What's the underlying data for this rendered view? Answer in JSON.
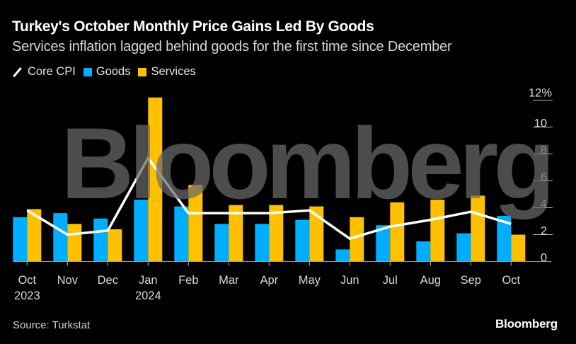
{
  "header": {
    "title": "Turkey's October Monthly Price Gains Led By Goods",
    "subtitle": "Services inflation lagged behind goods for the first time since December"
  },
  "legend": [
    {
      "name": "Core CPI",
      "kind": "line",
      "color": "#ffffff"
    },
    {
      "name": "Goods",
      "kind": "bar",
      "color": "#00adff"
    },
    {
      "name": "Services",
      "kind": "bar",
      "color": "#ffc000"
    }
  ],
  "watermark": "Bloomberg",
  "footer": {
    "source": "Source: Turkstat",
    "brand": "Bloomberg"
  },
  "chart_data": {
    "type": "bar",
    "title": "Turkey's October Monthly Price Gains Led By Goods",
    "subtitle": "Services inflation lagged behind goods for the first time since December",
    "xlabel": "",
    "ylabel": "",
    "y_unit": "%",
    "ylim": [
      0,
      12
    ],
    "yticks": [
      0,
      2,
      4,
      6,
      8,
      10,
      12
    ],
    "ytick_labels": [
      "0",
      "2",
      "4",
      "6",
      "8",
      "10",
      "12%"
    ],
    "y_axis_side": "right",
    "grid": false,
    "legend_position": "top-left",
    "categories": [
      "Oct",
      "Nov",
      "Dec",
      "Jan",
      "Feb",
      "Mar",
      "Apr",
      "May",
      "Jun",
      "Jul",
      "Aug",
      "Sep",
      "Oct"
    ],
    "category_sublabels": [
      "2023",
      "",
      "",
      "2024",
      "",
      "",
      "",
      "",
      "",
      "",
      "",
      "",
      ""
    ],
    "series": [
      {
        "name": "Goods",
        "type": "bar",
        "color": "#00adff",
        "values": [
          3.3,
          3.6,
          3.2,
          4.6,
          4.1,
          2.8,
          2.8,
          3.1,
          0.9,
          2.7,
          1.5,
          2.1,
          3.4
        ]
      },
      {
        "name": "Services",
        "type": "bar",
        "color": "#ffc000",
        "values": [
          3.9,
          2.8,
          2.4,
          12.2,
          5.7,
          4.2,
          4.2,
          4.1,
          3.3,
          4.4,
          4.6,
          4.9,
          2.0
        ]
      },
      {
        "name": "Core CPI",
        "type": "line",
        "color": "#ffffff",
        "values": [
          3.8,
          2.0,
          2.3,
          7.7,
          3.6,
          3.6,
          3.6,
          3.8,
          1.7,
          2.6,
          3.1,
          3.7,
          2.8
        ]
      }
    ]
  }
}
